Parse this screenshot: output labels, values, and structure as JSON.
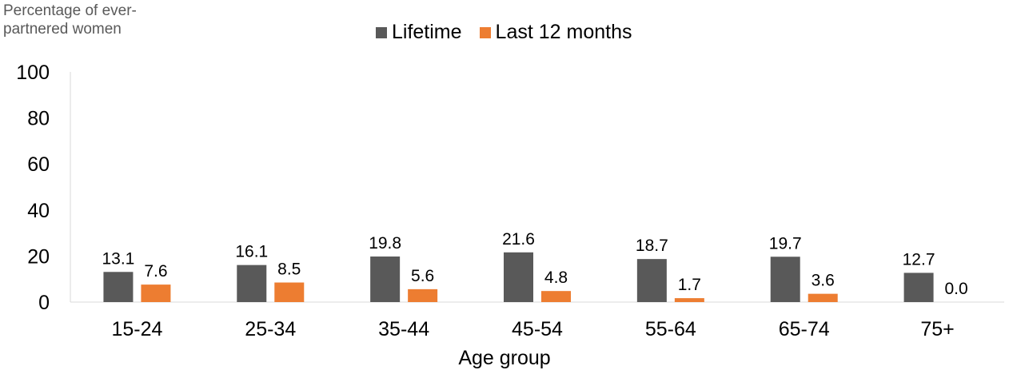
{
  "chart_data": {
    "type": "bar",
    "ylabel": "Percentage of ever-\npartnered women",
    "xlabel": "Age group",
    "categories": [
      "15-24",
      "25-34",
      "35-44",
      "45-54",
      "55-64",
      "65-74",
      "75+"
    ],
    "series": [
      {
        "name": "Lifetime",
        "color": "#595959",
        "values": [
          13.1,
          16.1,
          19.8,
          21.6,
          18.7,
          19.7,
          12.7
        ],
        "labels": [
          "13.1",
          "16.1",
          "19.8",
          "21.6",
          "18.7",
          "19.7",
          "12.7"
        ]
      },
      {
        "name": "Last 12 months",
        "color": "#ED7D31",
        "values": [
          7.6,
          8.5,
          5.6,
          4.8,
          1.7,
          3.6,
          0.0
        ],
        "labels": [
          "7.6",
          "8.5",
          "5.6",
          "4.8",
          "1.7",
          "3.6",
          "0.0"
        ]
      }
    ],
    "ylim": [
      0,
      100
    ],
    "yticks": [
      "0",
      "20",
      "40",
      "60",
      "80",
      "100"
    ],
    "grid": false,
    "legend_position": "top-center"
  }
}
